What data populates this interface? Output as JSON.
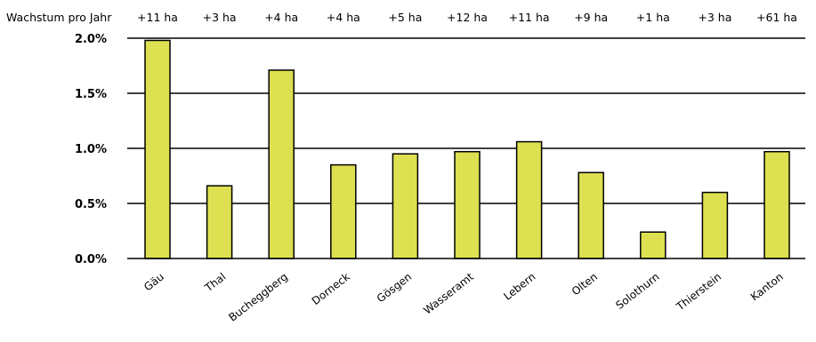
{
  "chart_data": {
    "type": "bar",
    "title": "",
    "xlabel": "",
    "ylabel": "",
    "categories": [
      "Gäu",
      "Thal",
      "Bucheggberg",
      "Dorneck",
      "Gösgen",
      "Wasseramt",
      "Lebern",
      "Olten",
      "Solothurn",
      "Thierstein",
      "Kanton"
    ],
    "values": [
      1.98,
      0.66,
      1.71,
      0.85,
      0.95,
      0.97,
      1.06,
      0.78,
      0.24,
      0.6,
      0.97
    ],
    "ylim": [
      0,
      2.0
    ],
    "yticks": [
      0.0,
      0.5,
      1.0,
      1.5,
      2.0
    ],
    "ytick_labels": [
      "0.0%",
      "0.5%",
      "1.0%",
      "1.5%",
      "2.0%"
    ],
    "grid": true,
    "bar_color": "#dde050",
    "top_row": {
      "label": "Wachstum pro Jahr",
      "values": [
        "+11 ha",
        "+3 ha",
        "+4 ha",
        "+4 ha",
        "+5 ha",
        "+12 ha",
        "+11 ha",
        "+9 ha",
        "+1 ha",
        "+3 ha",
        "+61 ha"
      ]
    }
  }
}
